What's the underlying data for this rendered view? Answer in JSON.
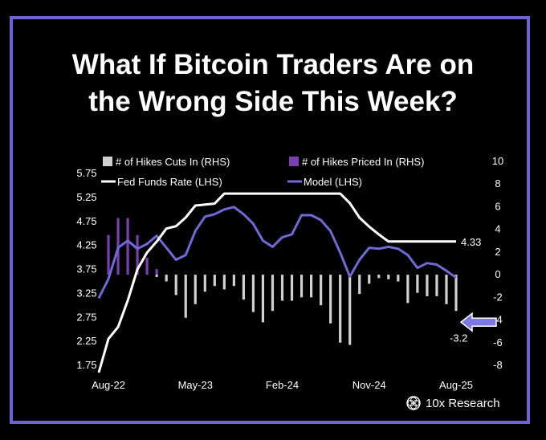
{
  "title_lines": [
    "What If Bitcoin Traders Are on",
    "the Wrong Side This Week?"
  ],
  "brand": "10x Research",
  "colors": {
    "frame": "#6b63d6",
    "fed_funds": "#ffffff",
    "model": "#6f6ad8",
    "hikes_cuts": "#d0d0d0",
    "hikes_priced": "#7a3fb0",
    "arrow": "#7b78e6",
    "background": "#000000"
  },
  "chart_data": {
    "type": "line",
    "title": "What If Bitcoin Traders Are on the Wrong Side This Week?",
    "x_ticks": [
      "Aug-22",
      "May-23",
      "Feb-24",
      "Nov-24",
      "Aug-25"
    ],
    "x_range": [
      "2022-07",
      "2025-08"
    ],
    "lhs_ticks": [
      "5.75",
      "5.25",
      "4.75",
      "4.25",
      "3.75",
      "3.25",
      "2.75",
      "2.25",
      "1.75"
    ],
    "rhs_ticks": [
      "10",
      "8",
      "6",
      "4",
      "2",
      "0",
      "-2",
      "-4",
      "-6",
      "-8"
    ],
    "ylim_lhs": [
      1.75,
      5.75
    ],
    "ylim_rhs": [
      -8,
      10
    ],
    "legend": [
      {
        "label": "# of Hikes Cuts In (RHS)",
        "kind": "bar",
        "color": "#d0d0d0"
      },
      {
        "label": "# of Hikes Priced In (RHS)",
        "kind": "bar",
        "color": "#7a3fb0"
      },
      {
        "label": "Fed Funds Rate (LHS)",
        "kind": "line",
        "color": "#ffffff"
      },
      {
        "label": "Model (LHS)",
        "kind": "line",
        "color": "#6f6ad8"
      }
    ],
    "annotations": {
      "fed_funds_last": "4.33",
      "hikes_cuts_last": "-3.2"
    },
    "series": [
      {
        "name": "Fed Funds Rate (LHS)",
        "axis": "lhs",
        "points": [
          [
            "2022-07-01",
            1.6
          ],
          [
            "2022-08-01",
            2.3
          ],
          [
            "2022-09-01",
            2.55
          ],
          [
            "2022-10-01",
            3.1
          ],
          [
            "2022-11-01",
            3.75
          ],
          [
            "2022-12-01",
            4.1
          ],
          [
            "2023-01-01",
            4.33
          ],
          [
            "2023-02-01",
            4.6
          ],
          [
            "2023-03-01",
            4.65
          ],
          [
            "2023-04-01",
            4.83
          ],
          [
            "2023-05-01",
            5.08
          ],
          [
            "2023-06-01",
            5.1
          ],
          [
            "2023-07-01",
            5.12
          ],
          [
            "2023-08-01",
            5.33
          ],
          [
            "2023-09-01",
            5.33
          ],
          [
            "2024-08-01",
            5.33
          ],
          [
            "2024-09-01",
            5.13
          ],
          [
            "2024-10-01",
            4.83
          ],
          [
            "2024-11-01",
            4.64
          ],
          [
            "2024-12-01",
            4.48
          ],
          [
            "2025-01-01",
            4.33
          ],
          [
            "2025-08-01",
            4.33
          ]
        ]
      },
      {
        "name": "Model (LHS)",
        "axis": "lhs",
        "points": [
          [
            "2022-07-01",
            3.15
          ],
          [
            "2022-08-01",
            3.55
          ],
          [
            "2022-09-01",
            4.2
          ],
          [
            "2022-10-01",
            4.35
          ],
          [
            "2022-11-01",
            4.18
          ],
          [
            "2022-12-01",
            4.28
          ],
          [
            "2023-01-01",
            4.45
          ],
          [
            "2023-02-01",
            4.2
          ],
          [
            "2023-03-01",
            3.95
          ],
          [
            "2023-04-01",
            4.05
          ],
          [
            "2023-05-01",
            4.55
          ],
          [
            "2023-06-01",
            4.85
          ],
          [
            "2023-07-01",
            4.9
          ],
          [
            "2023-08-01",
            5.0
          ],
          [
            "2023-09-01",
            5.05
          ],
          [
            "2023-10-01",
            4.9
          ],
          [
            "2023-11-01",
            4.7
          ],
          [
            "2023-12-01",
            4.35
          ],
          [
            "2024-01-01",
            4.22
          ],
          [
            "2024-02-01",
            4.42
          ],
          [
            "2024-03-01",
            4.48
          ],
          [
            "2024-04-01",
            4.88
          ],
          [
            "2024-05-01",
            4.88
          ],
          [
            "2024-06-01",
            4.78
          ],
          [
            "2024-07-01",
            4.55
          ],
          [
            "2024-08-01",
            4.1
          ],
          [
            "2024-09-01",
            3.6
          ],
          [
            "2024-10-01",
            3.95
          ],
          [
            "2024-11-01",
            4.2
          ],
          [
            "2024-12-01",
            4.18
          ],
          [
            "2025-01-01",
            4.22
          ],
          [
            "2025-02-01",
            4.18
          ],
          [
            "2025-03-01",
            4.05
          ],
          [
            "2025-04-01",
            3.78
          ],
          [
            "2025-05-01",
            3.88
          ],
          [
            "2025-06-01",
            3.85
          ],
          [
            "2025-07-01",
            3.72
          ],
          [
            "2025-08-01",
            3.58
          ]
        ]
      },
      {
        "name": "# of Hikes Priced In (RHS)",
        "axis": "rhs",
        "points": [
          [
            "2022-08-01",
            3.5
          ],
          [
            "2022-09-01",
            5.0
          ],
          [
            "2022-10-01",
            5.0
          ],
          [
            "2022-11-01",
            3.5
          ],
          [
            "2022-12-01",
            1.5
          ],
          [
            "2023-01-01",
            0.5
          ]
        ]
      },
      {
        "name": "# of Hikes Cuts In (RHS)",
        "axis": "rhs",
        "points": [
          [
            "2023-01-01",
            -0.2
          ],
          [
            "2023-02-01",
            -0.6
          ],
          [
            "2023-03-01",
            -1.8
          ],
          [
            "2023-04-01",
            -3.8
          ],
          [
            "2023-05-01",
            -2.6
          ],
          [
            "2023-06-01",
            -1.5
          ],
          [
            "2023-07-01",
            -1.0
          ],
          [
            "2023-08-01",
            -1.3
          ],
          [
            "2023-09-01",
            -1.0
          ],
          [
            "2023-10-01",
            -2.2
          ],
          [
            "2023-11-01",
            -3.3
          ],
          [
            "2023-12-01",
            -4.2
          ],
          [
            "2024-01-01",
            -3.2
          ],
          [
            "2024-02-01",
            -2.3
          ],
          [
            "2024-03-01",
            -2.3
          ],
          [
            "2024-04-01",
            -2.0
          ],
          [
            "2024-05-01",
            -2.0
          ],
          [
            "2024-06-01",
            -2.7
          ],
          [
            "2024-07-01",
            -4.3
          ],
          [
            "2024-08-01",
            -6.0
          ],
          [
            "2024-09-01",
            -6.2
          ],
          [
            "2024-10-01",
            -1.7
          ],
          [
            "2024-11-01",
            -0.8
          ],
          [
            "2024-12-01",
            -0.3
          ],
          [
            "2025-01-01",
            -0.4
          ],
          [
            "2025-02-01",
            -0.6
          ],
          [
            "2025-03-01",
            -2.5
          ],
          [
            "2025-04-01",
            -1.6
          ],
          [
            "2025-05-01",
            -1.9
          ],
          [
            "2025-06-01",
            -1.9
          ],
          [
            "2025-07-01",
            -2.6
          ],
          [
            "2025-08-01",
            -3.2
          ]
        ]
      }
    ]
  }
}
